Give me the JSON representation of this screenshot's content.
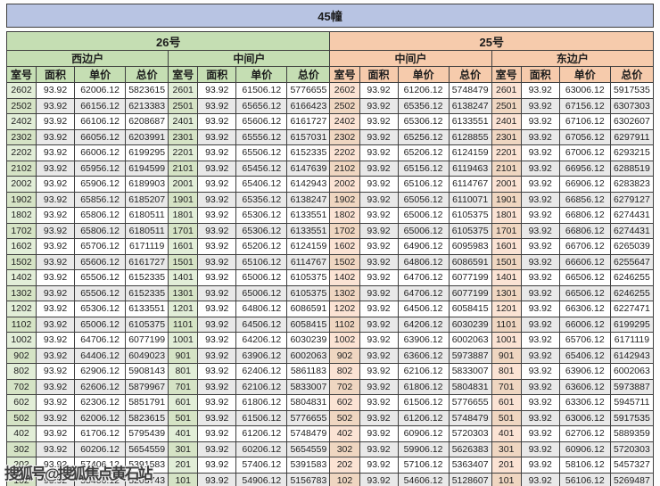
{
  "title": "45幢",
  "watermark": "搜狐号@搜狐焦点黄石站",
  "colors": {
    "title_bg": "#b8c4e3",
    "green_header": "#c5deb3",
    "orange_header": "#f6cbac",
    "room_green": "#e2eed8",
    "room_green_alt": "#d5e3c5",
    "room_orange": "#fbe3d4",
    "room_orange_alt": "#efd6c1",
    "row_alt": "#e9e9e9",
    "border": "#3f3f3f",
    "text": "#1c1c1c",
    "watermark_color": "#3d3d3d"
  },
  "table": {
    "columns": [
      "室号",
      "面积",
      "单价",
      "总价"
    ],
    "buildings": [
      {
        "label": "26号",
        "theme": "green",
        "span": 8
      },
      {
        "label": "25号",
        "theme": "orange",
        "span": 8
      }
    ],
    "groups": [
      {
        "building": "26号",
        "unit_type": "西边户",
        "theme": "green",
        "rows": [
          [
            "2602",
            "93.92",
            "62006.12",
            "5823615"
          ],
          [
            "2502",
            "93.92",
            "66156.12",
            "6213383"
          ],
          [
            "2402",
            "93.92",
            "66106.12",
            "6208687"
          ],
          [
            "2302",
            "93.92",
            "66056.12",
            "6203991"
          ],
          [
            "2202",
            "93.92",
            "66006.12",
            "6199295"
          ],
          [
            "2102",
            "93.92",
            "65956.12",
            "6194599"
          ],
          [
            "2002",
            "93.92",
            "65906.12",
            "6189903"
          ],
          [
            "1902",
            "93.92",
            "65856.12",
            "6185207"
          ],
          [
            "1802",
            "93.92",
            "65806.12",
            "6180511"
          ],
          [
            "1702",
            "93.92",
            "65806.12",
            "6180511"
          ],
          [
            "1602",
            "93.92",
            "65706.12",
            "6171119"
          ],
          [
            "1502",
            "93.92",
            "65606.12",
            "6161727"
          ],
          [
            "1402",
            "93.92",
            "65506.12",
            "6152335"
          ],
          [
            "1302",
            "93.92",
            "65506.12",
            "6152335"
          ],
          [
            "1202",
            "93.92",
            "65306.12",
            "6133551"
          ],
          [
            "1102",
            "93.92",
            "65006.12",
            "6105375"
          ],
          [
            "1002",
            "93.92",
            "64706.12",
            "6077199"
          ],
          [
            "902",
            "93.92",
            "64406.12",
            "6049023"
          ],
          [
            "802",
            "93.92",
            "62906.12",
            "5908143"
          ],
          [
            "702",
            "93.92",
            "62606.12",
            "5879967"
          ],
          [
            "602",
            "93.92",
            "62306.12",
            "5851791"
          ],
          [
            "502",
            "93.92",
            "62006.12",
            "5823615"
          ],
          [
            "402",
            "93.92",
            "61706.12",
            "5795439"
          ],
          [
            "302",
            "93.92",
            "60206.12",
            "5654559"
          ],
          [
            "202",
            "93.92",
            "57406.12",
            "5391583"
          ],
          [
            "102",
            "93.92",
            "55406.12",
            "5203743"
          ]
        ]
      },
      {
        "building": "26号",
        "unit_type": "中间户",
        "theme": "green",
        "rows": [
          [
            "2601",
            "93.92",
            "61506.12",
            "5776655"
          ],
          [
            "2501",
            "93.92",
            "65656.12",
            "6166423"
          ],
          [
            "2401",
            "93.92",
            "65606.12",
            "6161727"
          ],
          [
            "2301",
            "93.92",
            "65556.12",
            "6157031"
          ],
          [
            "2201",
            "93.92",
            "65506.12",
            "6152335"
          ],
          [
            "2101",
            "93.92",
            "65456.12",
            "6147639"
          ],
          [
            "2001",
            "93.92",
            "65406.12",
            "6142943"
          ],
          [
            "1901",
            "93.92",
            "65356.12",
            "6138247"
          ],
          [
            "1801",
            "93.92",
            "65306.12",
            "6133551"
          ],
          [
            "1701",
            "93.92",
            "65306.12",
            "6133551"
          ],
          [
            "1601",
            "93.92",
            "65206.12",
            "6124159"
          ],
          [
            "1501",
            "93.92",
            "65106.12",
            "6114767"
          ],
          [
            "1401",
            "93.92",
            "65006.12",
            "6105375"
          ],
          [
            "1301",
            "93.92",
            "65006.12",
            "6105375"
          ],
          [
            "1201",
            "93.92",
            "64806.12",
            "6086591"
          ],
          [
            "1101",
            "93.92",
            "64506.12",
            "6058415"
          ],
          [
            "1001",
            "93.92",
            "64206.12",
            "6030239"
          ],
          [
            "901",
            "93.92",
            "63906.12",
            "6002063"
          ],
          [
            "801",
            "93.92",
            "62406.12",
            "5861183"
          ],
          [
            "701",
            "93.92",
            "62106.12",
            "5833007"
          ],
          [
            "601",
            "93.92",
            "61806.12",
            "5804831"
          ],
          [
            "501",
            "93.92",
            "61506.12",
            "5776655"
          ],
          [
            "401",
            "93.92",
            "61206.12",
            "5748479"
          ],
          [
            "301",
            "93.92",
            "60206.12",
            "5654559"
          ],
          [
            "201",
            "93.92",
            "57406.12",
            "5391583"
          ],
          [
            "101",
            "93.92",
            "54906.12",
            "5156783"
          ]
        ]
      },
      {
        "building": "25号",
        "unit_type": "中间户",
        "theme": "orange",
        "rows": [
          [
            "2602",
            "93.92",
            "61206.12",
            "5748479"
          ],
          [
            "2502",
            "93.92",
            "65356.12",
            "6138247"
          ],
          [
            "2402",
            "93.92",
            "65306.12",
            "6133551"
          ],
          [
            "2302",
            "93.92",
            "65256.12",
            "6128855"
          ],
          [
            "2202",
            "93.92",
            "65206.12",
            "6124159"
          ],
          [
            "2102",
            "93.92",
            "65156.12",
            "6119463"
          ],
          [
            "2002",
            "93.92",
            "65106.12",
            "6114767"
          ],
          [
            "1902",
            "93.92",
            "65056.12",
            "6110071"
          ],
          [
            "1802",
            "93.92",
            "65006.12",
            "6105375"
          ],
          [
            "1702",
            "93.92",
            "65006.12",
            "6105375"
          ],
          [
            "1602",
            "93.92",
            "64906.12",
            "6095983"
          ],
          [
            "1502",
            "93.92",
            "64806.12",
            "6086591"
          ],
          [
            "1402",
            "93.92",
            "64706.12",
            "6077199"
          ],
          [
            "1302",
            "93.92",
            "64706.12",
            "6077199"
          ],
          [
            "1202",
            "93.92",
            "64506.12",
            "6058415"
          ],
          [
            "1102",
            "93.92",
            "64206.12",
            "6030239"
          ],
          [
            "1002",
            "93.92",
            "63906.12",
            "6002063"
          ],
          [
            "902",
            "93.92",
            "63606.12",
            "5973887"
          ],
          [
            "802",
            "93.92",
            "62106.12",
            "5833007"
          ],
          [
            "702",
            "93.92",
            "61806.12",
            "5804831"
          ],
          [
            "602",
            "93.92",
            "61506.12",
            "5776655"
          ],
          [
            "502",
            "93.92",
            "61206.12",
            "5748479"
          ],
          [
            "402",
            "93.92",
            "60906.12",
            "5720303"
          ],
          [
            "302",
            "93.92",
            "59906.12",
            "5626383"
          ],
          [
            "202",
            "93.92",
            "57106.12",
            "5363407"
          ],
          [
            "102",
            "93.92",
            "54606.12",
            "5128607"
          ]
        ]
      },
      {
        "building": "25号",
        "unit_type": "东边户",
        "theme": "orange",
        "rows": [
          [
            "2601",
            "93.92",
            "63006.12",
            "5917535"
          ],
          [
            "2501",
            "93.92",
            "67156.12",
            "6307303"
          ],
          [
            "2401",
            "93.92",
            "67106.12",
            "6302607"
          ],
          [
            "2301",
            "93.92",
            "67056.12",
            "6297911"
          ],
          [
            "2201",
            "93.92",
            "67006.12",
            "6293215"
          ],
          [
            "2101",
            "93.92",
            "66956.12",
            "6288519"
          ],
          [
            "2001",
            "93.92",
            "66906.12",
            "6283823"
          ],
          [
            "1901",
            "93.92",
            "66856.12",
            "6279127"
          ],
          [
            "1801",
            "93.92",
            "66806.12",
            "6274431"
          ],
          [
            "1701",
            "93.92",
            "66806.12",
            "6274431"
          ],
          [
            "1601",
            "93.92",
            "66706.12",
            "6265039"
          ],
          [
            "1501",
            "93.92",
            "66606.12",
            "6255647"
          ],
          [
            "1401",
            "93.92",
            "66506.12",
            "6246255"
          ],
          [
            "1301",
            "93.92",
            "66506.12",
            "6246255"
          ],
          [
            "1201",
            "93.92",
            "66306.12",
            "6227471"
          ],
          [
            "1101",
            "93.92",
            "66006.12",
            "6199295"
          ],
          [
            "1001",
            "93.92",
            "65706.12",
            "6171119"
          ],
          [
            "901",
            "93.92",
            "65406.12",
            "6142943"
          ],
          [
            "801",
            "93.92",
            "63906.12",
            "6002063"
          ],
          [
            "701",
            "93.92",
            "63606.12",
            "5973887"
          ],
          [
            "601",
            "93.92",
            "63306.12",
            "5945711"
          ],
          [
            "501",
            "93.92",
            "63006.12",
            "5917535"
          ],
          [
            "401",
            "93.92",
            "62706.12",
            "5889359"
          ],
          [
            "301",
            "93.92",
            "60906.12",
            "5720303"
          ],
          [
            "201",
            "93.92",
            "58106.12",
            "5457327"
          ],
          [
            "101",
            "93.92",
            "56106.12",
            "5269487"
          ]
        ]
      }
    ]
  }
}
